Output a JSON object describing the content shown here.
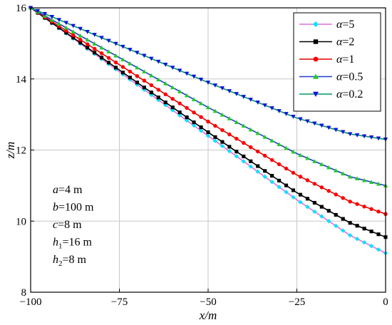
{
  "chart_data": {
    "type": "line",
    "title": "",
    "xlabel": "x/m",
    "ylabel": "z/m",
    "xlim": [
      -100,
      0
    ],
    "ylim": [
      8,
      16
    ],
    "xticks": [
      -100,
      -75,
      -50,
      -25,
      0
    ],
    "yticks": [
      8,
      10,
      12,
      14,
      16
    ],
    "xtick_labels": [
      "−100",
      "−75",
      "−50",
      "−25",
      "0"
    ],
    "ytick_labels": [
      "8",
      "10",
      "12",
      "14",
      "16"
    ],
    "grid": true,
    "legend_position": "top-right",
    "series": [
      {
        "name": "α=5",
        "label_var": "α",
        "label_val": "=5",
        "color": "#E070E0",
        "marker": "diamond",
        "marker_color": "#00E5FF",
        "x": [
          -100,
          -75,
          -50,
          -25,
          -10,
          0
        ],
        "y": [
          16.0,
          14.2,
          12.4,
          10.6,
          9.6,
          9.1
        ]
      },
      {
        "name": "α=2",
        "label_var": "α",
        "label_val": "=2",
        "color": "#000000",
        "marker": "square",
        "marker_color": "#000000",
        "x": [
          -100,
          -75,
          -50,
          -25,
          -10,
          0
        ],
        "y": [
          16.0,
          14.25,
          12.5,
          10.8,
          9.95,
          9.55
        ]
      },
      {
        "name": "α=1",
        "label_var": "α",
        "label_val": "=1",
        "color": "#E00000",
        "marker": "circle",
        "marker_color": "#FF0000",
        "x": [
          -100,
          -75,
          -50,
          -25,
          -10,
          0
        ],
        "y": [
          16.0,
          14.4,
          12.8,
          11.3,
          10.55,
          10.2
        ]
      },
      {
        "name": "α=0.5",
        "label_var": "α",
        "label_val": "=0.5",
        "color": "#1E3CD0",
        "marker": "triangle-up",
        "marker_color": "#22CC22",
        "x": [
          -100,
          -75,
          -50,
          -25,
          -10,
          0
        ],
        "y": [
          16.0,
          14.6,
          13.2,
          11.9,
          11.25,
          11.0
        ]
      },
      {
        "name": "α=0.2",
        "label_var": "α",
        "label_val": "=0.2",
        "color": "#009966",
        "marker": "triangle-down",
        "marker_color": "#1010E0",
        "x": [
          -100,
          -75,
          -50,
          -25,
          -10,
          0
        ],
        "y": [
          16.0,
          14.95,
          13.9,
          12.9,
          12.45,
          12.3
        ]
      }
    ],
    "annotations": [
      {
        "var": "a",
        "sub": "",
        "val": "=4 m"
      },
      {
        "var": "b",
        "sub": "",
        "val": "=100 m"
      },
      {
        "var": "c",
        "sub": "",
        "val": "=8 m"
      },
      {
        "var": "h",
        "sub": "1",
        "val": "=16 m"
      },
      {
        "var": "h",
        "sub": "2",
        "val": "=8 m"
      }
    ]
  }
}
